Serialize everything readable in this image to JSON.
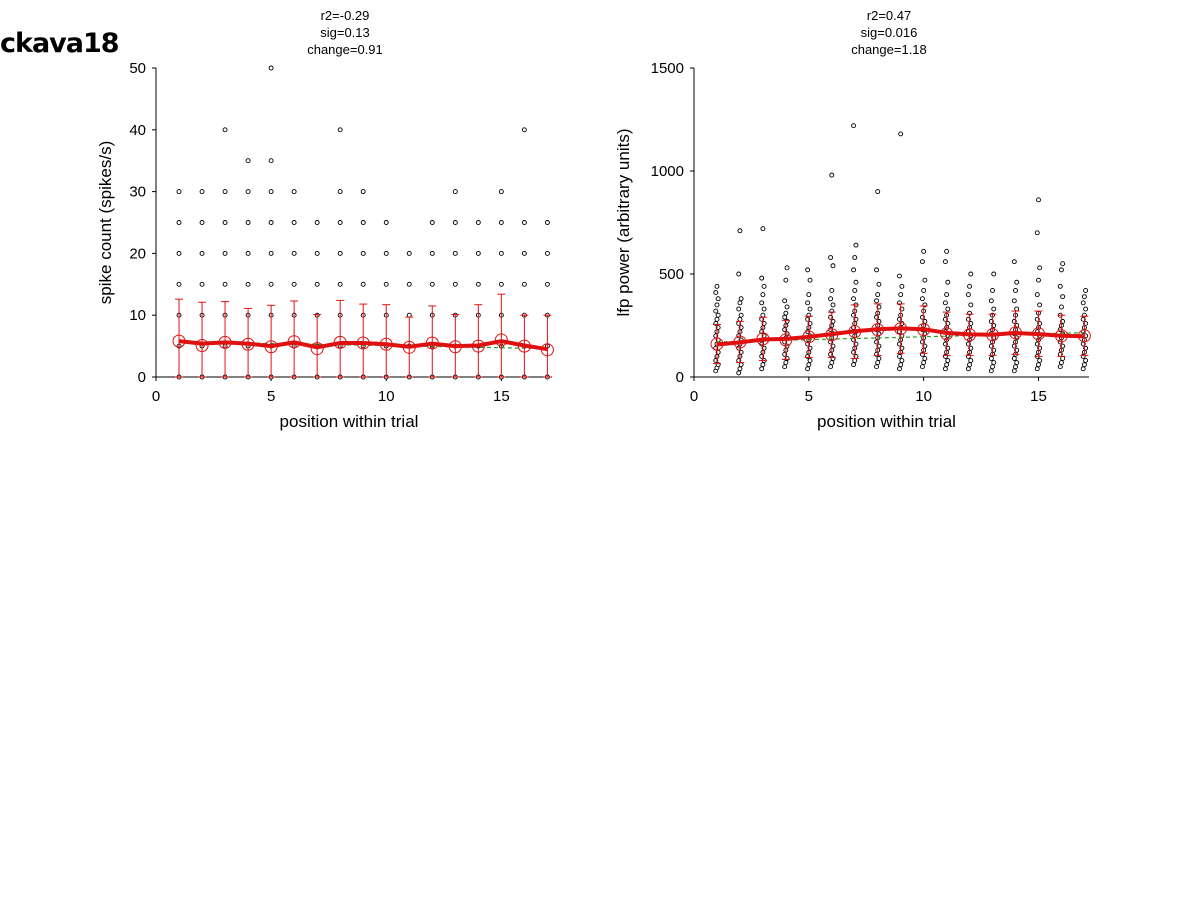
{
  "page_label": "ckava18",
  "chart_data": [
    {
      "type": "scatter",
      "title_lines": [
        "r2=-0.29",
        "sig=0.13",
        "change=0.91"
      ],
      "xlabel": "position within trial",
      "ylabel": "spike count (spikes/s)",
      "xlim": [
        0,
        17.2
      ],
      "ylim": [
        0,
        50
      ],
      "xticks": [
        0,
        5,
        10,
        15
      ],
      "yticks": [
        0,
        10,
        20,
        30,
        40,
        50
      ],
      "raw_points": [
        {
          "x": 1,
          "y": [
            0,
            5,
            10,
            15,
            20,
            25,
            30
          ]
        },
        {
          "x": 2,
          "y": [
            0,
            5,
            10,
            15,
            20,
            25,
            30
          ]
        },
        {
          "x": 3,
          "y": [
            0,
            5,
            10,
            15,
            20,
            25,
            30,
            40
          ]
        },
        {
          "x": 4,
          "y": [
            0,
            5,
            10,
            15,
            20,
            25,
            30,
            35
          ]
        },
        {
          "x": 5,
          "y": [
            0,
            5,
            10,
            15,
            20,
            25,
            30,
            35,
            50
          ]
        },
        {
          "x": 6,
          "y": [
            0,
            5,
            10,
            15,
            20,
            25,
            30
          ]
        },
        {
          "x": 7,
          "y": [
            0,
            5,
            10,
            15,
            20,
            25
          ]
        },
        {
          "x": 8,
          "y": [
            0,
            5,
            10,
            15,
            20,
            25,
            30,
            40
          ]
        },
        {
          "x": 9,
          "y": [
            0,
            5,
            10,
            15,
            20,
            25,
            30
          ]
        },
        {
          "x": 10,
          "y": [
            0,
            5,
            10,
            15,
            20,
            25
          ]
        },
        {
          "x": 11,
          "y": [
            0,
            5,
            10,
            15,
            20
          ]
        },
        {
          "x": 12,
          "y": [
            0,
            5,
            10,
            15,
            20,
            25
          ]
        },
        {
          "x": 13,
          "y": [
            0,
            5,
            10,
            15,
            20,
            25,
            30
          ]
        },
        {
          "x": 14,
          "y": [
            0,
            5,
            10,
            15,
            20,
            25
          ]
        },
        {
          "x": 15,
          "y": [
            0,
            5,
            10,
            15,
            20,
            25,
            30
          ]
        },
        {
          "x": 16,
          "y": [
            0,
            5,
            10,
            15,
            20,
            25,
            40
          ]
        },
        {
          "x": 17,
          "y": [
            0,
            5,
            10,
            15,
            20,
            25
          ]
        }
      ],
      "means": {
        "x": [
          1,
          2,
          3,
          4,
          5,
          6,
          7,
          8,
          9,
          10,
          11,
          12,
          13,
          14,
          15,
          16,
          17
        ],
        "mean": [
          5.8,
          5.1,
          5.6,
          5.3,
          4.9,
          5.7,
          4.6,
          5.6,
          5.5,
          5.3,
          4.8,
          5.5,
          4.9,
          5.0,
          6.0,
          5.0,
          4.4
        ],
        "sd": [
          6.8,
          7.0,
          6.6,
          5.8,
          6.7,
          6.6,
          5.5,
          6.8,
          6.3,
          6.4,
          4.9,
          6.0,
          5.2,
          6.7,
          7.4,
          5.0,
          5.6
        ]
      },
      "smooth": [
        5.8,
        5.4,
        5.6,
        5.4,
        5.0,
        5.6,
        4.8,
        5.5,
        5.5,
        5.3,
        4.9,
        5.4,
        5.0,
        5.1,
        5.8,
        5.1,
        4.5
      ],
      "fit": [
        5.7,
        4.6
      ],
      "colors": {
        "points": "#000000",
        "means": "#e01010",
        "fit": "#2a9d2a"
      }
    },
    {
      "type": "scatter",
      "title_lines": [
        "r2=0.47",
        "sig=0.016",
        "change=1.18"
      ],
      "xlabel": "position within trial",
      "ylabel": "lfp power (arbitrary units)",
      "xlim": [
        0,
        17.2
      ],
      "ylim": [
        0,
        1500
      ],
      "xticks": [
        0,
        5,
        10,
        15
      ],
      "yticks": [
        0,
        500,
        1000,
        1500
      ],
      "raw_points": [
        {
          "x": 1,
          "y": [
            30,
            45,
            60,
            80,
            100,
            120,
            140,
            160,
            180,
            200,
            220,
            240,
            260,
            280,
            300,
            320,
            350,
            380,
            410,
            440
          ]
        },
        {
          "x": 2,
          "y": [
            20,
            40,
            60,
            80,
            100,
            120,
            140,
            160,
            180,
            200,
            220,
            240,
            260,
            280,
            300,
            330,
            360,
            380,
            500,
            710
          ]
        },
        {
          "x": 3,
          "y": [
            40,
            60,
            80,
            100,
            120,
            140,
            160,
            180,
            200,
            220,
            240,
            260,
            280,
            300,
            330,
            360,
            400,
            440,
            480,
            720
          ]
        },
        {
          "x": 4,
          "y": [
            50,
            70,
            90,
            110,
            130,
            150,
            170,
            190,
            210,
            230,
            250,
            270,
            290,
            310,
            340,
            370,
            470,
            530
          ]
        },
        {
          "x": 5,
          "y": [
            40,
            60,
            80,
            100,
            120,
            140,
            160,
            180,
            200,
            220,
            240,
            260,
            280,
            300,
            330,
            360,
            400,
            470,
            520
          ]
        },
        {
          "x": 6,
          "y": [
            50,
            70,
            90,
            110,
            130,
            150,
            170,
            190,
            210,
            230,
            250,
            270,
            290,
            320,
            350,
            380,
            420,
            540,
            580,
            980
          ]
        },
        {
          "x": 7,
          "y": [
            60,
            80,
            100,
            120,
            140,
            160,
            180,
            200,
            220,
            240,
            260,
            280,
            300,
            320,
            350,
            380,
            420,
            460,
            520,
            580,
            640,
            1220
          ]
        },
        {
          "x": 8,
          "y": [
            50,
            70,
            90,
            110,
            130,
            150,
            170,
            190,
            210,
            230,
            250,
            270,
            290,
            310,
            340,
            370,
            400,
            450,
            520,
            900
          ]
        },
        {
          "x": 9,
          "y": [
            40,
            60,
            80,
            100,
            120,
            140,
            160,
            180,
            200,
            220,
            240,
            260,
            280,
            300,
            330,
            360,
            400,
            440,
            490,
            1180
          ]
        },
        {
          "x": 10,
          "y": [
            50,
            70,
            90,
            110,
            130,
            150,
            170,
            190,
            210,
            230,
            250,
            270,
            290,
            320,
            350,
            380,
            420,
            470,
            560,
            610
          ]
        },
        {
          "x": 11,
          "y": [
            40,
            60,
            80,
            100,
            120,
            140,
            160,
            180,
            200,
            220,
            240,
            260,
            280,
            300,
            330,
            360,
            400,
            460,
            560,
            610
          ]
        },
        {
          "x": 12,
          "y": [
            40,
            60,
            80,
            100,
            120,
            140,
            160,
            180,
            200,
            220,
            240,
            260,
            280,
            310,
            350,
            400,
            440,
            500
          ]
        },
        {
          "x": 13,
          "y": [
            30,
            50,
            70,
            90,
            110,
            130,
            150,
            170,
            190,
            210,
            230,
            250,
            270,
            300,
            330,
            370,
            420,
            500
          ]
        },
        {
          "x": 14,
          "y": [
            30,
            50,
            70,
            90,
            110,
            130,
            150,
            170,
            190,
            210,
            230,
            250,
            270,
            300,
            330,
            370,
            420,
            460,
            560
          ]
        },
        {
          "x": 15,
          "y": [
            40,
            60,
            80,
            100,
            120,
            140,
            160,
            180,
            200,
            220,
            240,
            260,
            280,
            310,
            350,
            400,
            470,
            530,
            700,
            860
          ]
        },
        {
          "x": 16,
          "y": [
            50,
            70,
            90,
            110,
            130,
            150,
            170,
            190,
            210,
            230,
            250,
            270,
            300,
            340,
            390,
            440,
            520,
            550
          ]
        },
        {
          "x": 17,
          "y": [
            40,
            60,
            80,
            100,
            120,
            140,
            160,
            180,
            200,
            220,
            240,
            260,
            280,
            300,
            330,
            360,
            390,
            420
          ]
        }
      ],
      "means": {
        "x": [
          1,
          2,
          3,
          4,
          5,
          6,
          7,
          8,
          9,
          10,
          11,
          12,
          13,
          14,
          15,
          16,
          17
        ],
        "mean": [
          160,
          170,
          185,
          180,
          195,
          205,
          220,
          230,
          235,
          230,
          210,
          205,
          205,
          215,
          210,
          200,
          200
        ],
        "sd": [
          95,
          100,
          105,
          95,
          100,
          110,
          130,
          125,
          120,
          115,
          105,
          100,
          100,
          105,
          110,
          100,
          95
        ]
      },
      "smooth": [
        158,
        168,
        182,
        185,
        195,
        208,
        222,
        232,
        236,
        232,
        214,
        207,
        205,
        214,
        208,
        200,
        198
      ],
      "fit": [
        170,
        215
      ],
      "colors": {
        "points": "#000000",
        "means": "#e01010",
        "fit": "#2a9d2a"
      }
    }
  ]
}
